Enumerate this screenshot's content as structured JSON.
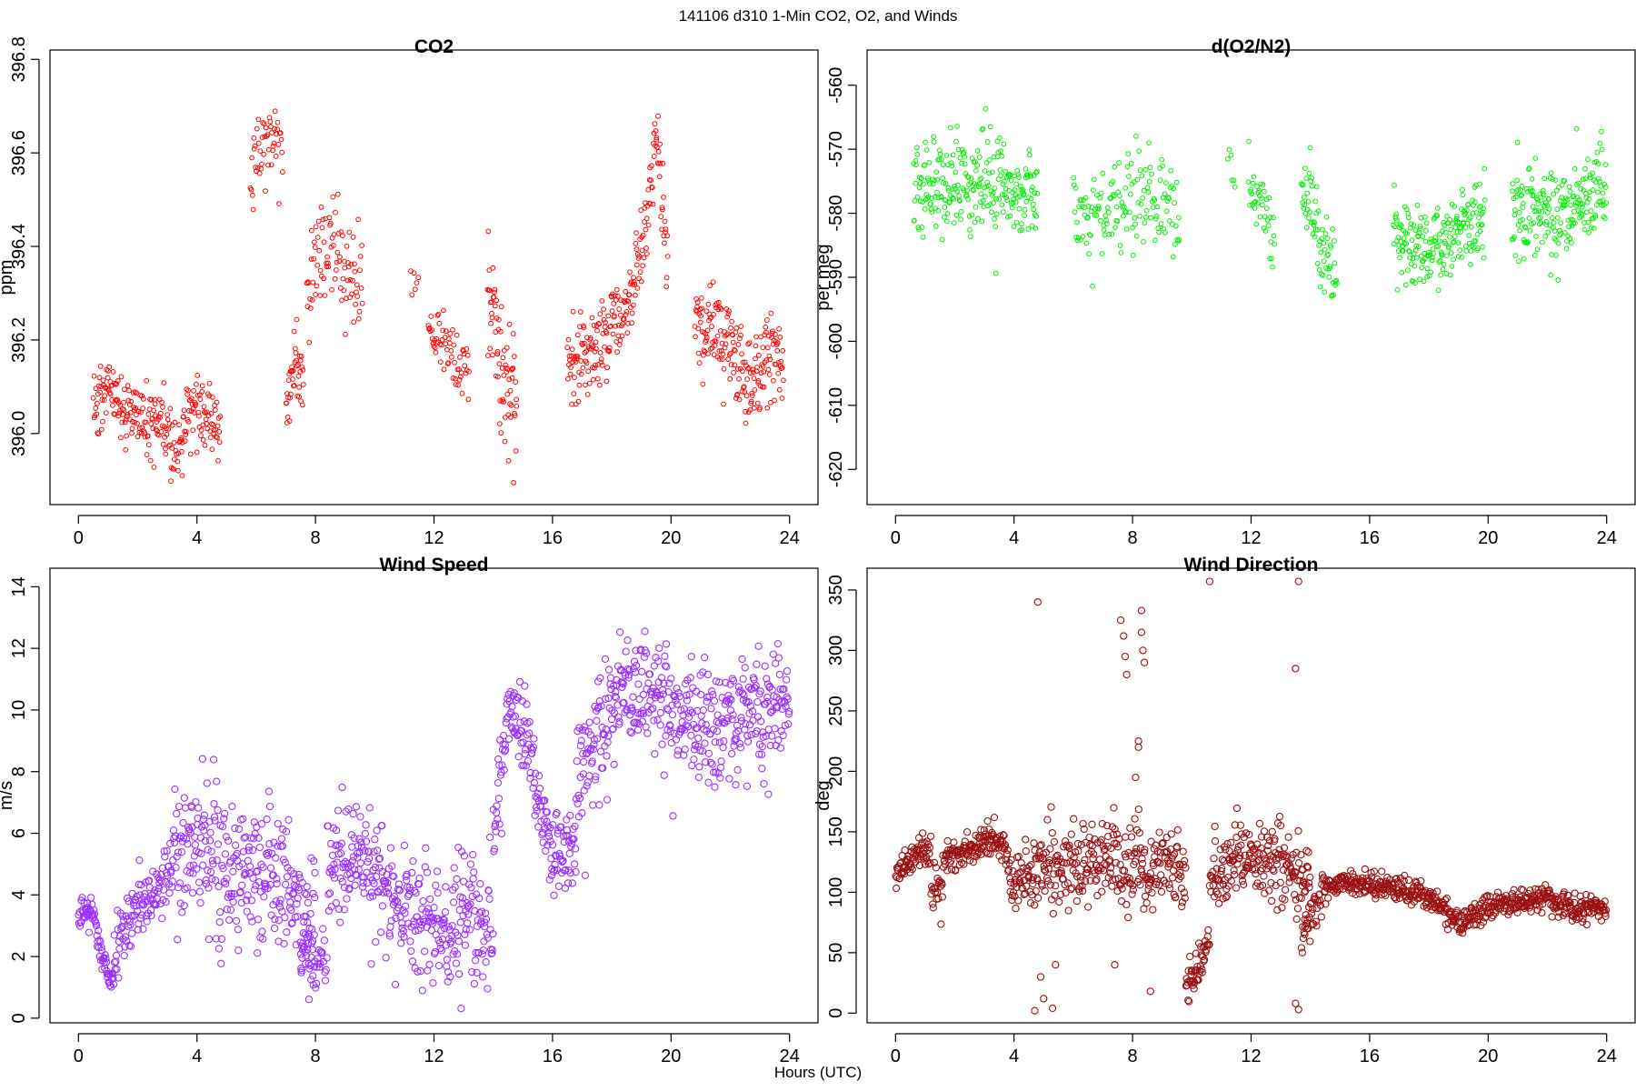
{
  "figure": {
    "suptitle": "141106   d310   1-Min CO2, O2, and Winds",
    "xlabel": "Hours (UTC)"
  },
  "chart_data": [
    {
      "type": "scatter",
      "title": "CO2",
      "ylabel": "ppm",
      "xlim": [
        -0.96,
        24.96
      ],
      "ylim": [
        395.848,
        396.82
      ],
      "xticks": [
        0,
        4,
        8,
        12,
        16,
        20,
        24
      ],
      "yticks": [
        396.0,
        396.2,
        396.4,
        396.6,
        396.8
      ],
      "ytick_labels": [
        "396.0",
        "396.2",
        "396.4",
        "396.6",
        "396.8"
      ],
      "color": "#ff0000",
      "marker_radius": 2.4,
      "segments": [
        {
          "x0": 0.5,
          "x1": 4.8,
          "base": [
            [
              0.5,
              396.05
            ],
            [
              1.0,
              396.1
            ],
            [
              1.5,
              396.05
            ],
            [
              2.0,
              396.05
            ],
            [
              2.5,
              396.02
            ],
            [
              3.0,
              396.0
            ],
            [
              3.3,
              395.93
            ],
            [
              3.7,
              396.05
            ],
            [
              4.2,
              396.05
            ],
            [
              4.8,
              396.0
            ]
          ],
          "sd": 0.05,
          "n": 250
        },
        {
          "x0": 5.8,
          "x1": 6.9,
          "base": [
            [
              5.8,
              396.55
            ],
            [
              6.3,
              396.62
            ],
            [
              6.6,
              396.65
            ],
            [
              6.9,
              396.58
            ]
          ],
          "sd": 0.07,
          "n": 50
        },
        {
          "x0": 7.0,
          "x1": 7.6,
          "base": [
            [
              7.0,
              396.05
            ],
            [
              7.3,
              396.15
            ],
            [
              7.6,
              396.1
            ]
          ],
          "sd": 0.05,
          "n": 40
        },
        {
          "x0": 7.7,
          "x1": 9.6,
          "base": [
            [
              7.7,
              396.3
            ],
            [
              8.1,
              396.38
            ],
            [
              8.6,
              396.4
            ],
            [
              9.0,
              396.35
            ],
            [
              9.6,
              396.32
            ]
          ],
          "sd": 0.08,
          "n": 90
        },
        {
          "x0": 11.2,
          "x1": 11.5,
          "base": [
            [
              11.2,
              396.35
            ],
            [
              11.5,
              396.3
            ]
          ],
          "sd": 0.04,
          "n": 6
        },
        {
          "x0": 11.8,
          "x1": 13.2,
          "base": [
            [
              11.8,
              396.22
            ],
            [
              12.3,
              396.2
            ],
            [
              12.7,
              396.15
            ],
            [
              13.2,
              396.12
            ]
          ],
          "sd": 0.04,
          "n": 60
        },
        {
          "x0": 13.8,
          "x1": 14.8,
          "base": [
            [
              13.8,
              396.35
            ],
            [
              14.1,
              396.2
            ],
            [
              14.4,
              396.1
            ],
            [
              14.8,
              396.05
            ]
          ],
          "sd": 0.1,
          "n": 70
        },
        {
          "x0": 16.5,
          "x1": 19.9,
          "base": [
            [
              16.5,
              396.15
            ],
            [
              17.2,
              396.18
            ],
            [
              18.0,
              396.22
            ],
            [
              18.6,
              396.28
            ],
            [
              19.2,
              396.45
            ],
            [
              19.5,
              396.65
            ],
            [
              19.9,
              396.35
            ]
          ],
          "sd": 0.06,
          "n": 210
        },
        {
          "x0": 20.8,
          "x1": 23.8,
          "base": [
            [
              20.8,
              396.25
            ],
            [
              21.5,
              396.22
            ],
            [
              22.0,
              396.18
            ],
            [
              22.6,
              396.12
            ],
            [
              23.2,
              396.18
            ],
            [
              23.8,
              396.15
            ]
          ],
          "sd": 0.07,
          "n": 190
        }
      ]
    },
    {
      "type": "scatter",
      "title": "d(O2/N2)",
      "ylabel": "per meg",
      "xlim": [
        -0.96,
        24.96
      ],
      "ylim": [
        -625.5,
        -554.5
      ],
      "xticks": [
        0,
        4,
        8,
        12,
        16,
        20,
        24
      ],
      "yticks": [
        -620,
        -610,
        -600,
        -590,
        -580,
        -570,
        -560
      ],
      "ytick_labels": [
        "-620",
        "-610",
        "-600",
        "-590",
        "-580",
        "-570",
        "-560"
      ],
      "color": "#00ee00",
      "marker_radius": 2.4,
      "segments": [
        {
          "x0": 0.6,
          "x1": 4.8,
          "base": [
            [
              0.6,
              -576
            ],
            [
              1.5,
              -575
            ],
            [
              2.5,
              -575
            ],
            [
              3.5,
              -576
            ],
            [
              4.8,
              -577
            ]
          ],
          "sd": 5.0,
          "n": 260
        },
        {
          "x0": 6.0,
          "x1": 9.6,
          "base": [
            [
              6.0,
              -580
            ],
            [
              7.0,
              -580
            ],
            [
              8.0,
              -578
            ],
            [
              9.0,
              -578
            ],
            [
              9.6,
              -582
            ]
          ],
          "sd": 5.0,
          "n": 150
        },
        {
          "x0": 11.2,
          "x1": 11.5,
          "base": [
            [
              11.2,
              -572
            ],
            [
              11.5,
              -575
            ]
          ],
          "sd": 3.0,
          "n": 6
        },
        {
          "x0": 11.9,
          "x1": 12.8,
          "base": [
            [
              11.9,
              -575
            ],
            [
              12.3,
              -580
            ],
            [
              12.8,
              -583
            ]
          ],
          "sd": 4.0,
          "n": 40
        },
        {
          "x0": 13.7,
          "x1": 14.9,
          "base": [
            [
              13.7,
              -575
            ],
            [
              14.2,
              -582
            ],
            [
              14.6,
              -588
            ],
            [
              14.9,
              -590
            ]
          ],
          "sd": 4.0,
          "n": 70
        },
        {
          "x0": 16.8,
          "x1": 19.9,
          "base": [
            [
              16.8,
              -583
            ],
            [
              17.5,
              -585
            ],
            [
              18.3,
              -586
            ],
            [
              19.0,
              -583
            ],
            [
              19.9,
              -580
            ]
          ],
          "sd": 4.5,
          "n": 200
        },
        {
          "x0": 20.8,
          "x1": 24.0,
          "base": [
            [
              20.8,
              -580
            ],
            [
              21.6,
              -580
            ],
            [
              22.4,
              -581
            ],
            [
              23.2,
              -578
            ],
            [
              24.0,
              -575
            ]
          ],
          "sd": 5.0,
          "n": 210
        }
      ]
    },
    {
      "type": "scatter",
      "title": "Wind Speed",
      "ylabel": "m/s",
      "xlim": [
        -0.96,
        24.96
      ],
      "ylim": [
        -0.15,
        14.6
      ],
      "xticks": [
        0,
        4,
        8,
        12,
        16,
        20,
        24
      ],
      "yticks": [
        0,
        2,
        4,
        6,
        8,
        10,
        12,
        14
      ],
      "ytick_labels": [
        "0",
        "2",
        "4",
        "6",
        "8",
        "10",
        "12",
        "14"
      ],
      "color": "#9b30ff",
      "marker_radius": 3.6,
      "segments": [
        {
          "x0": 0.0,
          "x1": 1.2,
          "base": [
            [
              0.0,
              3.2
            ],
            [
              0.5,
              3.6
            ],
            [
              0.8,
              2.0
            ],
            [
              1.2,
              1.2
            ]
          ],
          "sd": 0.35,
          "n": 72
        },
        {
          "x0": 1.2,
          "x1": 3.2,
          "base": [
            [
              1.2,
              2.0
            ],
            [
              1.7,
              3.2
            ],
            [
              2.3,
              3.8
            ],
            [
              3.2,
              4.8
            ]
          ],
          "sd": 0.7,
          "n": 110
        },
        {
          "x0": 3.2,
          "x1": 8.0,
          "base": [
            [
              3.2,
              5.0
            ],
            [
              4.0,
              5.5
            ],
            [
              5.0,
              5.0
            ],
            [
              6.0,
              4.8
            ],
            [
              7.0,
              4.6
            ],
            [
              8.0,
              2.5
            ]
          ],
          "sd": 1.5,
          "n": 280
        },
        {
          "x0": 7.5,
          "x1": 8.4,
          "base": [
            [
              7.5,
              2.0
            ],
            [
              8.0,
              1.5
            ],
            [
              8.4,
              1.8
            ]
          ],
          "sd": 0.6,
          "n": 40
        },
        {
          "x0": 8.4,
          "x1": 14.0,
          "base": [
            [
              8.4,
              4.8
            ],
            [
              9.5,
              5.0
            ],
            [
              10.5,
              4.0
            ],
            [
              11.5,
              3.2
            ],
            [
              12.5,
              2.6
            ],
            [
              13.2,
              3.5
            ],
            [
              14.0,
              3.0
            ]
          ],
          "sd": 1.3,
          "n": 330
        },
        {
          "x0": 14.0,
          "x1": 16.8,
          "base": [
            [
              14.0,
              6.0
            ],
            [
              14.5,
              10.0
            ],
            [
              15.0,
              9.5
            ],
            [
              15.5,
              7.5
            ],
            [
              16.0,
              5.0
            ],
            [
              16.8,
              5.5
            ]
          ],
          "sd": 0.9,
          "n": 170
        },
        {
          "x0": 16.8,
          "x1": 24.0,
          "base": [
            [
              16.8,
              7.5
            ],
            [
              17.5,
              9.0
            ],
            [
              18.5,
              10.8
            ],
            [
              19.5,
              10.6
            ],
            [
              20.5,
              9.5
            ],
            [
              21.5,
              9.3
            ],
            [
              22.5,
              10.2
            ],
            [
              23.3,
              10.0
            ],
            [
              24.0,
              11.0
            ]
          ],
          "sd": 1.35,
          "n": 430
        }
      ]
    },
    {
      "type": "scatter",
      "title": "Wind Direction",
      "ylabel": "deg",
      "xlim": [
        -0.96,
        24.96
      ],
      "ylim": [
        -8,
        368
      ],
      "xticks": [
        0,
        4,
        8,
        12,
        16,
        20,
        24
      ],
      "yticks": [
        0,
        50,
        100,
        150,
        200,
        250,
        300,
        350
      ],
      "ytick_labels": [
        "0",
        "50",
        "100",
        "150",
        "200",
        "250",
        "300",
        "350"
      ],
      "color": "#9b1010",
      "marker_radius": 3.6,
      "segments": [
        {
          "x0": 0.0,
          "x1": 1.2,
          "base": [
            [
              0.0,
              110
            ],
            [
              0.4,
              128
            ],
            [
              1.2,
              135
            ]
          ],
          "sd": 9,
          "n": 70
        },
        {
          "x0": 1.2,
          "x1": 1.6,
          "base": [
            [
              1.2,
              105
            ],
            [
              1.6,
              100
            ]
          ],
          "sd": 12,
          "n": 22
        },
        {
          "x0": 1.6,
          "x1": 3.8,
          "base": [
            [
              1.6,
              130
            ],
            [
              2.5,
              133
            ],
            [
              3.3,
              145
            ],
            [
              3.8,
              130
            ]
          ],
          "sd": 9,
          "n": 130
        },
        {
          "x0": 3.8,
          "x1": 9.8,
          "base": [
            [
              3.8,
              110
            ],
            [
              5.0,
              115
            ],
            [
              6.0,
              120
            ],
            [
              7.0,
              125
            ],
            [
              8.0,
              120
            ],
            [
              9.0,
              125
            ],
            [
              9.8,
              110
            ]
          ],
          "sd": 22,
          "n": 340
        },
        {
          "x0": 9.8,
          "x1": 10.6,
          "base": [
            [
              9.8,
              25
            ],
            [
              10.2,
              35
            ],
            [
              10.6,
              60
            ]
          ],
          "sd": 10,
          "n": 48
        },
        {
          "x0": 10.6,
          "x1": 14.0,
          "base": [
            [
              10.6,
              110
            ],
            [
              11.5,
              130
            ],
            [
              12.5,
              130
            ],
            [
              13.3,
              115
            ],
            [
              14.0,
              110
            ]
          ],
          "sd": 20,
          "n": 200
        },
        {
          "x0": 13.7,
          "x1": 14.4,
          "base": [
            [
              13.7,
              60
            ],
            [
              14.0,
              80
            ],
            [
              14.4,
              95
            ]
          ],
          "sd": 12,
          "n": 35
        },
        {
          "x0": 14.4,
          "x1": 24.0,
          "base": [
            [
              14.4,
              105
            ],
            [
              15.5,
              108
            ],
            [
              16.5,
              105
            ],
            [
              17.5,
              100
            ],
            [
              18.5,
              88
            ],
            [
              19.0,
              75
            ],
            [
              20.0,
              88
            ],
            [
              21.0,
              92
            ],
            [
              22.0,
              95
            ],
            [
              23.0,
              85
            ],
            [
              24.0,
              88
            ]
          ],
          "sd": 7,
          "n": 560
        }
      ],
      "extra_points": [
        [
          4.8,
          340
        ],
        [
          7.6,
          325
        ],
        [
          7.7,
          312
        ],
        [
          7.75,
          295
        ],
        [
          7.8,
          280
        ],
        [
          8.3,
          333
        ],
        [
          8.3,
          315
        ],
        [
          8.35,
          300
        ],
        [
          8.4,
          290
        ],
        [
          8.2,
          225
        ],
        [
          8.2,
          220
        ],
        [
          8.1,
          195
        ],
        [
          10.6,
          357
        ],
        [
          13.6,
          357
        ],
        [
          13.5,
          285
        ],
        [
          4.7,
          2
        ],
        [
          5.3,
          4
        ],
        [
          5.0,
          12
        ],
        [
          4.9,
          30
        ],
        [
          5.4,
          40
        ],
        [
          13.6,
          3
        ],
        [
          13.5,
          8
        ],
        [
          7.4,
          40
        ],
        [
          8.6,
          18
        ]
      ]
    }
  ]
}
